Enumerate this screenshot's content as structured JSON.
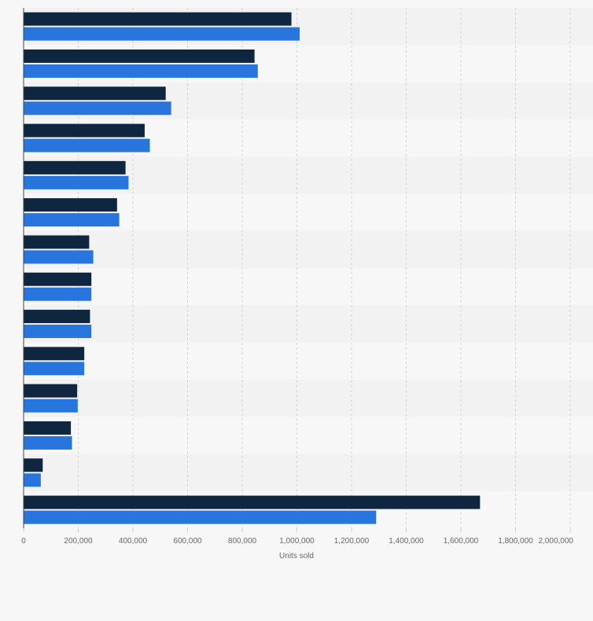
{
  "chart_data": {
    "type": "bar",
    "orientation": "horizontal",
    "categories": [
      "",
      "",
      "",
      "",
      "",
      "",
      "",
      "",
      "",
      "",
      "",
      "",
      "",
      ""
    ],
    "series": [
      {
        "values": [
          980000,
          845000,
          520000,
          443000,
          373000,
          342000,
          240000,
          248000,
          243000,
          222000,
          196000,
          173000,
          70000,
          1670000
        ]
      },
      {
        "values": [
          1010000,
          857000,
          540000,
          462000,
          384000,
          350000,
          255000,
          248000,
          248000,
          222000,
          198000,
          177000,
          63000,
          1290000
        ]
      }
    ],
    "xlabel": "Units sold",
    "xlim": [
      0,
      2000000
    ],
    "x_ticks": [
      "0",
      "200,000",
      "400,000",
      "600,000",
      "800,000",
      "1,000,000",
      "1,200,000",
      "1,400,000",
      "1,600,000",
      "1,800,000",
      "2,000,000"
    ],
    "x_tick_values": [
      0,
      200000,
      400000,
      600000,
      800000,
      1000000,
      1200000,
      1400000,
      1600000,
      1800000,
      2000000
    ],
    "grid": true,
    "colors": {
      "series_0": "#0f2640",
      "series_1": "#2876dd",
      "band_dark": "#f2f2f2",
      "band_light": "#f7f7f7",
      "grid": "#d4d4d4",
      "axis": "#444444",
      "text": "#666666"
    }
  }
}
